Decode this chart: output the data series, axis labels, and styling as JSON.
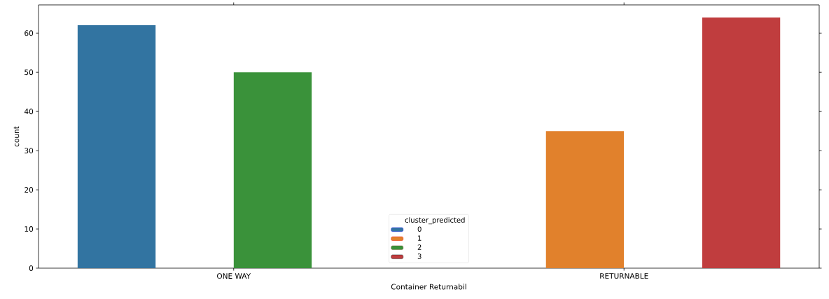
{
  "chart_data": {
    "type": "bar",
    "categories": [
      "ONE WAY",
      "RETURNABLE"
    ],
    "xlabel": "Container Returnabil",
    "ylabel": "count",
    "legend_title": "cluster_predicted",
    "legend": "bottom",
    "ylim": [
      0,
      67.2
    ],
    "yticks": [
      0,
      10,
      20,
      30,
      40,
      50,
      60
    ],
    "grid": false,
    "series": [
      {
        "name": "0",
        "color": "#3274a1",
        "values": [
          62,
          null
        ]
      },
      {
        "name": "1",
        "color": "#e1812c",
        "values": [
          null,
          35
        ]
      },
      {
        "name": "2",
        "color": "#3a923a",
        "values": [
          50,
          null
        ]
      },
      {
        "name": "3",
        "color": "#c03d3e",
        "values": [
          null,
          64
        ]
      }
    ]
  }
}
